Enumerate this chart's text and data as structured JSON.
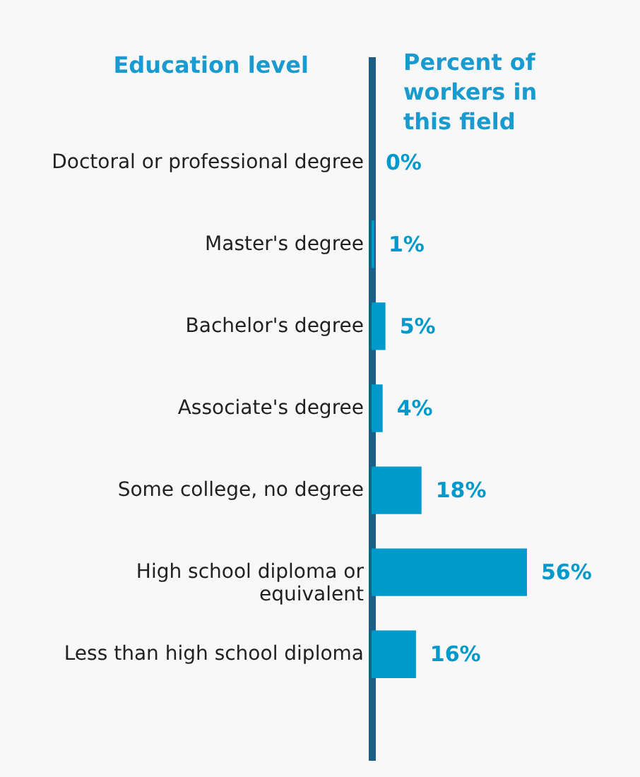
{
  "chart_data": {
    "type": "bar",
    "orientation": "horizontal",
    "ylabel": "Education level",
    "xlabel": "Percent of workers in this field",
    "categories": [
      "Doctoral or professional degree",
      "Master's degree",
      "Bachelor's degree",
      "Associate's degree",
      "Some college, no degree",
      "High school diploma or equivalent",
      "Less than high school diploma"
    ],
    "values": [
      0,
      1,
      5,
      4,
      18,
      56,
      16
    ],
    "value_labels": [
      "0%",
      "1%",
      "5%",
      "4%",
      "18%",
      "56%",
      "16%"
    ],
    "color": "#0099cc"
  }
}
